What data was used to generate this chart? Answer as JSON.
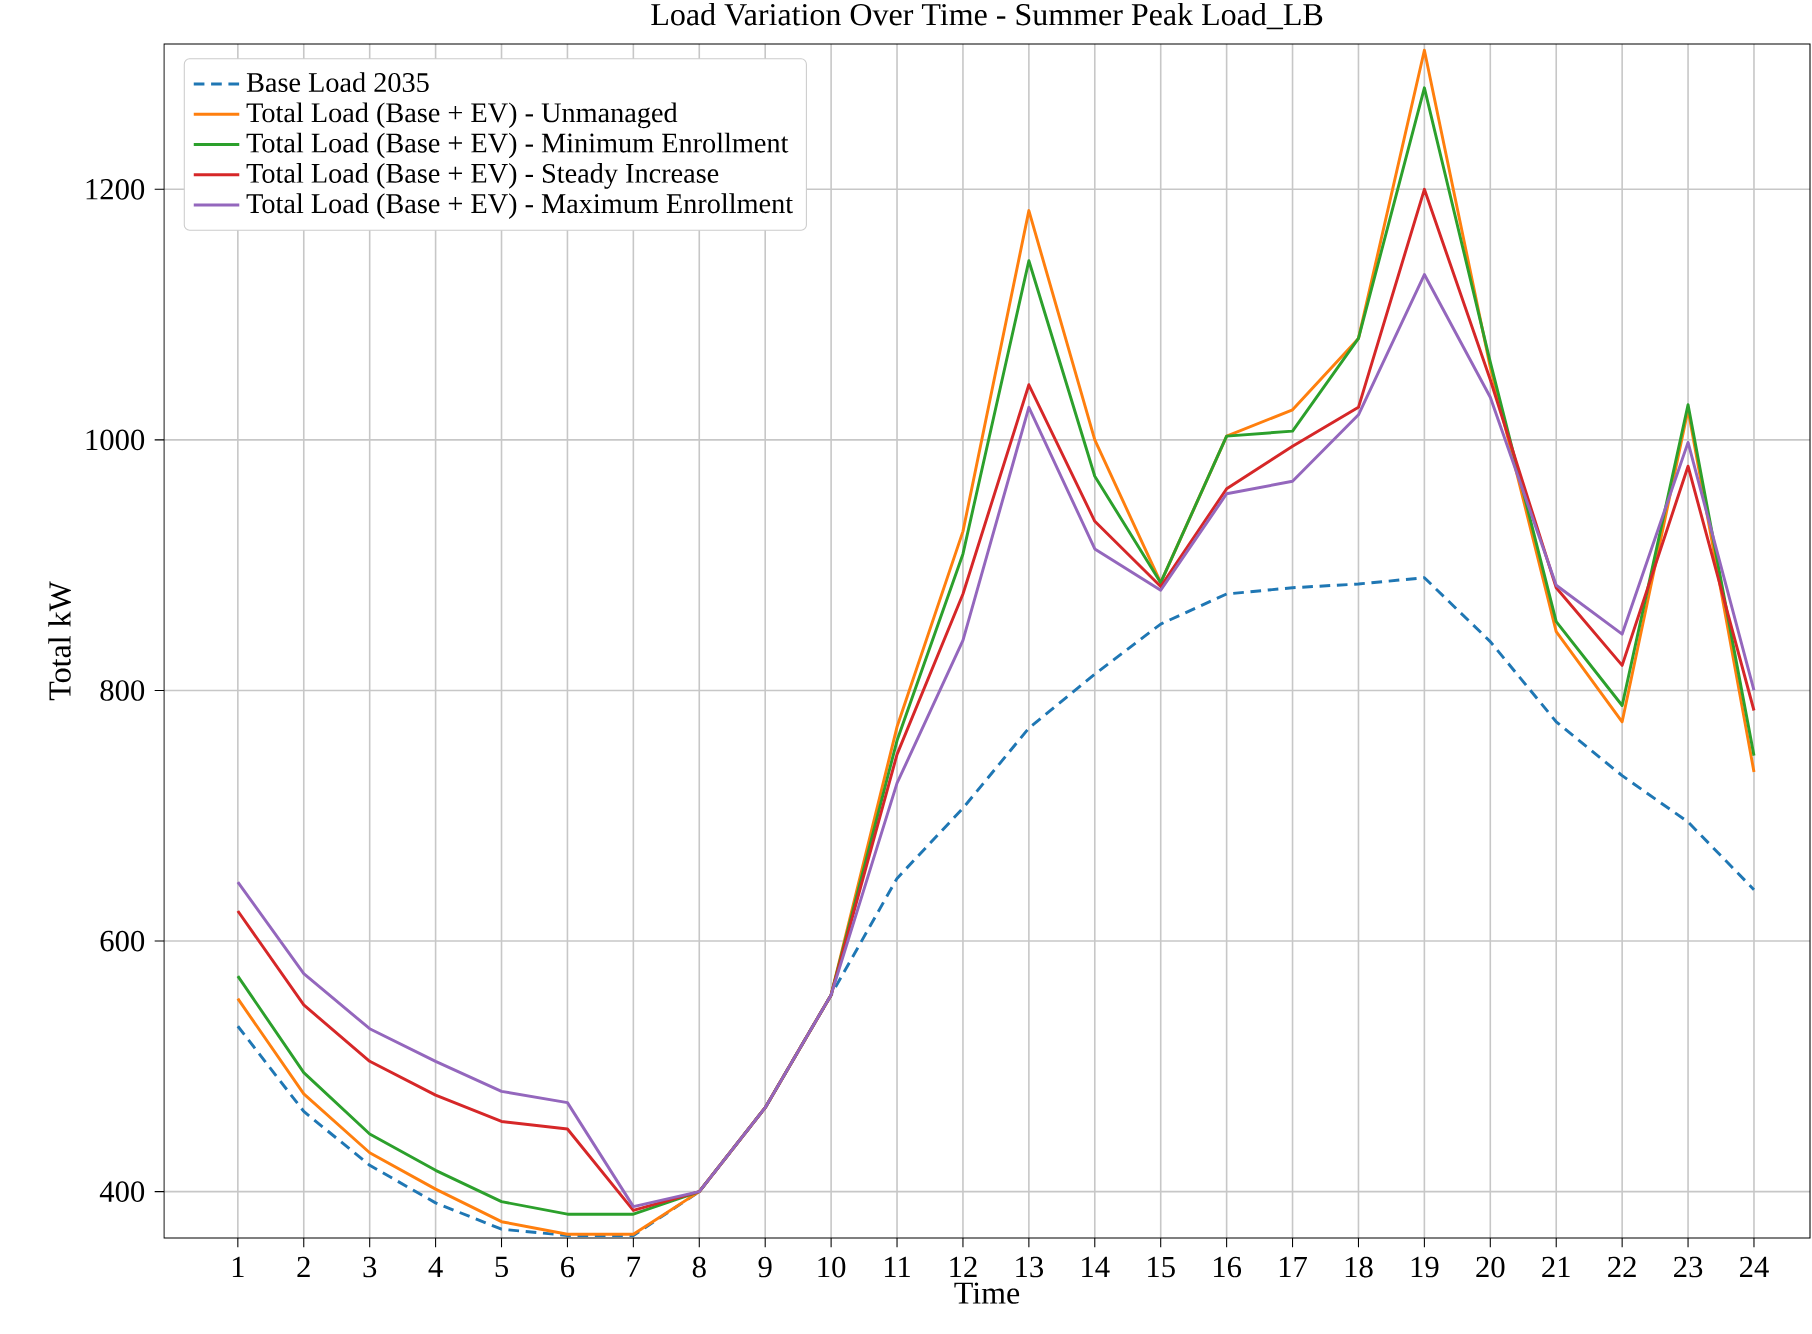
{
  "chart_data": {
    "type": "line",
    "title": "Load Variation Over Time - Summer Peak Load_LB",
    "xlabel": "Time",
    "ylabel": "Total kW",
    "x": [
      1,
      2,
      3,
      4,
      5,
      6,
      7,
      8,
      9,
      10,
      11,
      12,
      13,
      14,
      15,
      16,
      17,
      18,
      19,
      20,
      21,
      22,
      23,
      24
    ],
    "xlim": [
      -0.12,
      24.85
    ],
    "xticks": [
      1,
      2,
      3,
      4,
      5,
      6,
      7,
      8,
      9,
      10,
      11,
      12,
      13,
      14,
      15,
      16,
      17,
      18,
      19,
      20,
      21,
      22,
      23,
      24
    ],
    "ylim": [
      363,
      1316
    ],
    "yticks": [
      400,
      600,
      800,
      1000,
      1200
    ],
    "grid": true,
    "legend": "top left",
    "marker": "none",
    "series": [
      {
        "name": "Base Load 2035",
        "color": "#1f77b4",
        "line_style": "dashed",
        "values": [
          532,
          464,
          421,
          391,
          370,
          365,
          365,
          400,
          467,
          557,
          650,
          706,
          770,
          813,
          853,
          877,
          882,
          885,
          890,
          839,
          775,
          732,
          695,
          641
        ]
      },
      {
        "name": "Total Load (Base + EV) - Unmanaged",
        "color": "#ff7f0e",
        "line_style": "solid",
        "values": [
          554,
          478,
          431,
          402,
          376,
          366,
          366,
          400,
          467,
          557,
          771,
          927,
          1183,
          1000,
          886,
          1003,
          1024,
          1081,
          1311,
          1058,
          847,
          775,
          1024,
          735
        ]
      },
      {
        "name": "Total Load (Base + EV) - Minimum Enrollment",
        "color": "#2ca02c",
        "line_style": "solid",
        "values": [
          572,
          495,
          446,
          417,
          392,
          382,
          382,
          400,
          467,
          557,
          760,
          909,
          1143,
          971,
          886,
          1003,
          1007,
          1081,
          1281,
          1062,
          855,
          788,
          1028,
          748
        ]
      },
      {
        "name": "Total Load (Base + EV) - Steady Increase",
        "color": "#d62728",
        "line_style": "solid",
        "values": [
          624,
          549,
          504,
          477,
          456,
          450,
          385,
          400,
          467,
          557,
          749,
          877,
          1044,
          935,
          883,
          961,
          995,
          1026,
          1200,
          1048,
          882,
          820,
          979,
          784
        ]
      },
      {
        "name": "Total Load (Base + EV) - Maximum Enrollment",
        "color": "#9467bd",
        "line_style": "solid",
        "values": [
          647,
          574,
          530,
          504,
          480,
          471,
          388,
          400,
          467,
          557,
          726,
          840,
          1026,
          913,
          880,
          957,
          967,
          1020,
          1132,
          1034,
          884,
          845,
          998,
          800
        ]
      }
    ]
  }
}
